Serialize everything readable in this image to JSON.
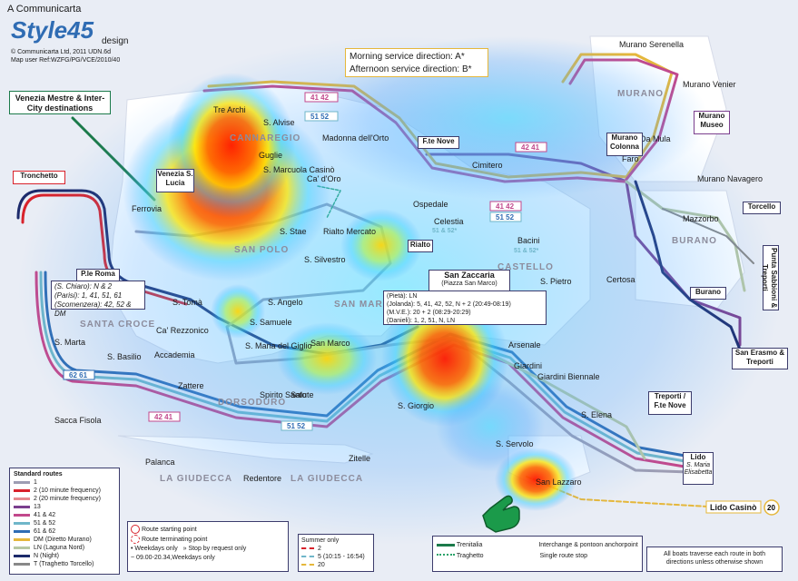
{
  "header": {
    "company": "A Communicarta",
    "brand": "Style45",
    "brand_suffix": "design",
    "copyright": "© Communicarta Ltd, 2011 UDN.6d",
    "map_ref": "Map user Ref:WZFG/PG/VCE/2010/40"
  },
  "service_direction": {
    "morning": "Morning service direction:",
    "morning_code": "A*",
    "afternoon": "Afternoon service direction:",
    "afternoon_code": "B*"
  },
  "callouts": {
    "mestre": "Venezia Mestre & Inter-City destinations",
    "tronchetto": "Tronchetto",
    "ple_roma": "P.le Roma",
    "ple_roma_routes": [
      "(S. Chiaro): N & 2",
      "(Parisi): 1, 41, 51, 61",
      "(Scomenzera): 42, 52 & DM"
    ],
    "san_zaccaria": "San Zaccaria",
    "san_zaccaria_sub": "(Piazza San Marco)",
    "san_zaccaria_routes": [
      "(Pietà): LN",
      "(Jolanda): 5, 41, 42, 52, N + 2 (20:49-08:19)",
      "(M.V.E.): 20 + 2 (08:29-20:29)",
      "(Danieli): 1, 2, 51, N, LN"
    ],
    "venezia_slucia": "Venezia S. Lucia",
    "ftenove": "F.te Nove",
    "rialto": "Rialto",
    "murano_colonna": "Murano Colonna",
    "murano_museo": "Murano Museo",
    "torcello": "Torcello",
    "burano": "Burano",
    "punta_sabbioni": "Punta Sabbioni & Treporti",
    "san_erasmo": "San Erasmo & Treporti",
    "treporti": "Treporti / F.te Nove",
    "lido": "Lido",
    "lido_sub": "S. Maria Elisabetta",
    "lido_casino": "Lido Casinò"
  },
  "stops": [
    "Tre Archi",
    "Guglie",
    "S. Marcuola Casinò",
    "Ferrovia",
    "Ca' d'Oro",
    "S. Stae",
    "Rialto Mercato",
    "S. Alvise",
    "Madonna dell'Orto",
    "Cimitero",
    "Ospedale",
    "Celestia",
    "Bacini",
    "S. Pietro",
    "Certosa",
    "Murano Serenella",
    "Murano Venier",
    "Da Mula",
    "Faro",
    "Murano Navagero",
    "Mazzorbo",
    "S. Silvestro",
    "S. Angelo",
    "S. Tomà",
    "S. Samuele",
    "Ca' Rezzonico",
    "Accademia",
    "S. Maria del Giglio",
    "San Marco",
    "Salute",
    "Spirito Santo",
    "S. Marta",
    "S. Basilio",
    "Zattere",
    "Sacca Fisola",
    "Palanca",
    "Redentore",
    "Zitelle",
    "S. Giorgio",
    "Arsenale",
    "Giardini",
    "Giardini Biennale",
    "S. Elena",
    "S. Servolo",
    "San Lazzaro"
  ],
  "districts": [
    "CANNAREGIO",
    "SAN POLO",
    "CASTELLO",
    "SAN MARCO",
    "SANTA CROCE",
    "DORSODURO",
    "LA GIUDECCA",
    "LA GIUDECCA",
    "MURANO",
    "BURANO"
  ],
  "route_badges": {
    "r4142": "41 42",
    "r5152": "51 52",
    "r6261": "62 61",
    "r4241": "42 41",
    "celestia_routes": "51 & 52*",
    "bacini_routes": "51 & 52*"
  },
  "legend": {
    "title": "Standard routes",
    "routes": [
      {
        "label": "1",
        "color": "#9d9db3"
      },
      {
        "label": "2 (10 minute frequency)",
        "color": "#d8222b"
      },
      {
        "label": "2 (20 minute frequency)",
        "color": "#e58a8f"
      },
      {
        "label": "13",
        "color": "#7b3f8e"
      },
      {
        "label": "41 & 42",
        "color": "#c2488c"
      },
      {
        "label": "51 & 52",
        "color": "#6fb6c9"
      },
      {
        "label": "61 & 62",
        "color": "#2f6cb3"
      },
      {
        "label": "DM (Diretto Murano)",
        "color": "#e5b73b"
      },
      {
        "label": "LN (Laguna Nord)",
        "color": "#b7c7a3"
      },
      {
        "label": "N (Night)",
        "color": "#1c2a6b"
      },
      {
        "label": "T (Traghetto Torcello)",
        "color": "#888888"
      }
    ],
    "route_start": "Route starting point",
    "route_terminating": "Route terminating point",
    "weekdays": "Weekdays only",
    "request": "Stop by request only",
    "weekdays_time": "09.00-20.34,Weekdays only",
    "summer_title": "Summer only",
    "summer_routes": [
      {
        "label": "2",
        "color": "#d8222b"
      },
      {
        "label": "5  (10:15 - 16:54)",
        "color": "#6fb6c9"
      },
      {
        "label": "20",
        "color": "#e5b73b"
      }
    ],
    "trenitalia": "Trenitalia",
    "traghetto": "Traghetto",
    "interchange": "Interchange & pontoon anchorpoint",
    "single_stop": "Single route stop",
    "note": "All boats traverse each route in both directions unless otherwise shown"
  },
  "colors": {
    "heat_hot": "#ff2a00",
    "heat_warm": "#ffe600",
    "heat_cool": "#35d3ff",
    "heat_cold": "#3aa0ff",
    "land": "#ffffff",
    "water": "#e9edf5",
    "hand": "#1b9a4a"
  }
}
